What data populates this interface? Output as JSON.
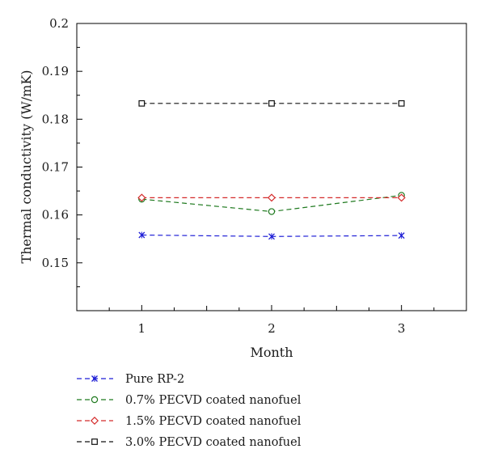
{
  "chart_data": {
    "type": "line",
    "xlabel": "Month",
    "ylabel": "Thermal conductivity (W/mK)",
    "x": [
      1,
      2,
      3
    ],
    "xticks": [
      "1",
      "2",
      "3"
    ],
    "xlim": [
      0.5,
      3.5
    ],
    "ylim": [
      0.14,
      0.2
    ],
    "yticks": [
      "0.15",
      "0.16",
      "0.17",
      "0.18",
      "0.19",
      "0.2"
    ],
    "grid": false,
    "legend_position": "bottom-outside",
    "series": [
      {
        "name": "Pure RP-2",
        "values": [
          0.1558,
          0.1555,
          0.1557
        ],
        "color": "#1f1fd6",
        "marker": "x-cross"
      },
      {
        "name": "0.7% PECVD coated nanofuel",
        "values": [
          0.1633,
          0.1607,
          0.1641
        ],
        "color": "#1f7a1f",
        "marker": "circle"
      },
      {
        "name": "1.5% PECVD coated nanofuel",
        "values": [
          0.1636,
          0.1636,
          0.1636
        ],
        "color": "#d42a2a",
        "marker": "diamond"
      },
      {
        "name": "3.0% PECVD coated nanofuel",
        "values": [
          0.1833,
          0.1833,
          0.1833
        ],
        "color": "#111111",
        "marker": "square"
      }
    ]
  }
}
